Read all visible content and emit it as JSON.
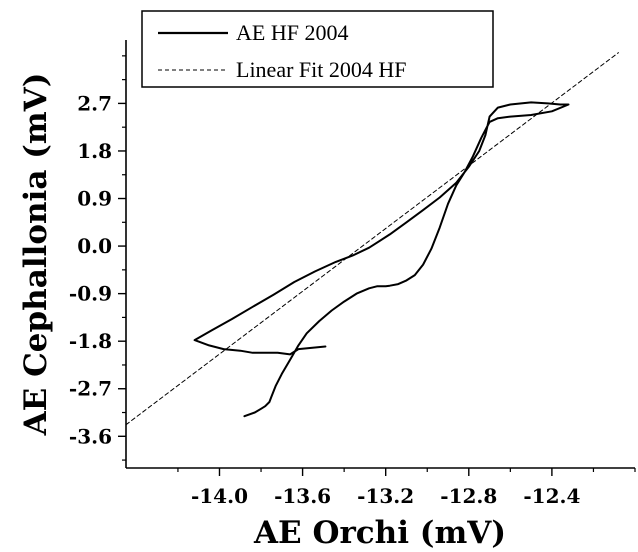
{
  "chart_data": {
    "type": "line",
    "xlabel": "AE Orchi (mV)",
    "ylabel": "AE Cephallonia (mV)",
    "xlim": [
      -14.45,
      -12.0
    ],
    "ylim": [
      -4.2,
      3.9
    ],
    "x_ticks": [
      -14.0,
      -13.6,
      -13.2,
      -12.8,
      -12.4
    ],
    "x_tick_labels": [
      "-14.0",
      "-13.6",
      "-13.2",
      "-12.8",
      "-12.4"
    ],
    "y_ticks": [
      2.7,
      1.8,
      0.9,
      0.0,
      -0.9,
      -1.8,
      -2.7,
      -3.6
    ],
    "y_tick_labels": [
      "2.7",
      "1.8",
      "0.9",
      "0.0",
      "-0.9",
      "-1.8",
      "-2.7",
      "-3.6"
    ],
    "grid": false,
    "legend_position": "top-left",
    "series": [
      {
        "name": "AE HF 2004",
        "style": "solid",
        "color": "#000000",
        "x": [
          -13.49,
          -13.62,
          -13.66,
          -13.72,
          -13.84,
          -13.9,
          -13.98,
          -14.05,
          -14.12,
          -14.04,
          -13.94,
          -13.84,
          -13.74,
          -13.64,
          -13.54,
          -13.44,
          -13.36,
          -13.28,
          -13.18,
          -13.1,
          -13.02,
          -12.94,
          -12.86,
          -12.8,
          -12.75,
          -12.72,
          -12.7,
          -12.66,
          -12.6,
          -12.5,
          -12.42,
          -12.36,
          -12.32,
          -12.4,
          -12.5,
          -12.6,
          -12.66,
          -12.7,
          -12.74,
          -12.78,
          -12.82,
          -12.86,
          -12.9,
          -12.94,
          -12.98,
          -13.02,
          -13.06,
          -13.1,
          -13.14,
          -13.18,
          -13.2,
          -13.24,
          -13.28,
          -13.34,
          -13.4,
          -13.46,
          -13.52,
          -13.58,
          -13.62,
          -13.66,
          -13.7,
          -13.73,
          -13.75,
          -13.76,
          -13.78,
          -13.8,
          -13.83,
          -13.88
        ],
        "y": [
          -1.9,
          -1.95,
          -2.05,
          -2.02,
          -2.02,
          -1.98,
          -1.95,
          -1.88,
          -1.78,
          -1.6,
          -1.38,
          -1.15,
          -0.92,
          -0.68,
          -0.48,
          -0.3,
          -0.18,
          -0.03,
          0.22,
          0.45,
          0.68,
          0.92,
          1.2,
          1.5,
          1.8,
          2.1,
          2.45,
          2.62,
          2.68,
          2.72,
          2.7,
          2.68,
          2.68,
          2.55,
          2.48,
          2.45,
          2.42,
          2.35,
          2.05,
          1.7,
          1.4,
          1.15,
          0.8,
          0.35,
          -0.05,
          -0.35,
          -0.55,
          -0.65,
          -0.72,
          -0.75,
          -0.76,
          -0.76,
          -0.8,
          -0.9,
          -1.05,
          -1.22,
          -1.42,
          -1.65,
          -1.88,
          -2.15,
          -2.42,
          -2.65,
          -2.85,
          -2.95,
          -3.03,
          -3.08,
          -3.15,
          -3.22
        ]
      },
      {
        "name": "Linear Fit 2004 HF",
        "style": "dashed",
        "color": "#000000",
        "x": [
          -14.45,
          -12.08
        ],
        "y": [
          -3.38,
          3.66
        ]
      }
    ]
  }
}
